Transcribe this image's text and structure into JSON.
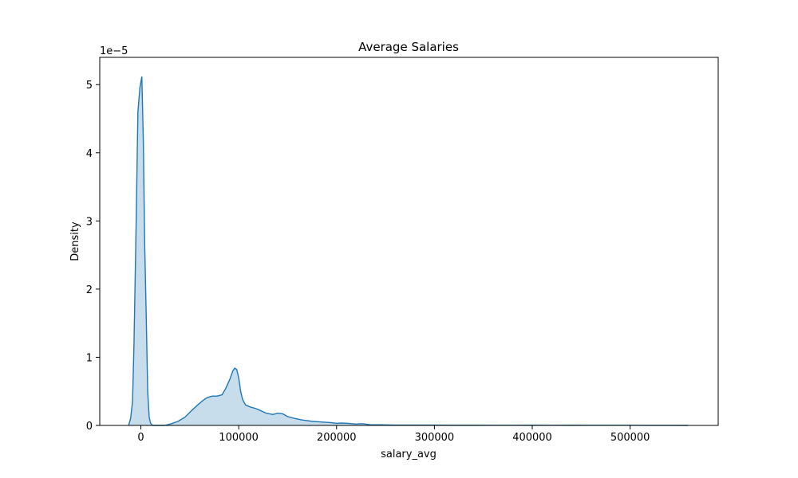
{
  "chart_data": {
    "type": "area",
    "title": "Average Salaries",
    "xlabel": "salary_avg",
    "ylabel": "Density",
    "y_offset_label": "1e−5",
    "xlim": [
      -42000,
      590000
    ],
    "ylim": [
      0,
      5.4
    ],
    "grid": false,
    "legend": "none",
    "xticks": [
      {
        "value": 0,
        "label": "0"
      },
      {
        "value": 100000,
        "label": "100000"
      },
      {
        "value": 200000,
        "label": "200000"
      },
      {
        "value": 300000,
        "label": "300000"
      },
      {
        "value": 400000,
        "label": "400000"
      },
      {
        "value": 500000,
        "label": "500000"
      }
    ],
    "yticks": [
      {
        "value": 0,
        "label": "0"
      },
      {
        "value": 1,
        "label": "1"
      },
      {
        "value": 2,
        "label": "2"
      },
      {
        "value": 3,
        "label": "3"
      },
      {
        "value": 4,
        "label": "4"
      },
      {
        "value": 5,
        "label": "5"
      }
    ],
    "series": [
      {
        "color": "#1f77b4",
        "fill_color": "#1f77b4",
        "fill_opacity": 0.25,
        "x": [
          -12500,
          -10500,
          -8500,
          -7000,
          -5000,
          -3000,
          -1000,
          1000,
          2500,
          4000,
          5500,
          7000,
          8500,
          10000,
          12000,
          14000,
          16000,
          19000,
          24000,
          30000,
          38000,
          45000,
          52000,
          58000,
          63000,
          68000,
          73000,
          78000,
          83000,
          87000,
          91000,
          94000,
          96000,
          98000,
          100000,
          102000,
          104000,
          107000,
          112000,
          117000,
          122000,
          128000,
          135000,
          140000,
          145000,
          150000,
          158000,
          165000,
          175000,
          185000,
          195000,
          200000,
          205000,
          212000,
          220000,
          226000,
          235000,
          245000,
          260000,
          280000,
          300000,
          320000,
          340000,
          360000,
          380000,
          400000,
          420000,
          440000,
          460000,
          480000,
          500000,
          520000,
          540000,
          559000
        ],
        "y": [
          0.0,
          0.1,
          0.35,
          1.2,
          2.8,
          4.6,
          4.95,
          5.12,
          4.2,
          2.6,
          1.6,
          0.5,
          0.12,
          0.03,
          0.0,
          0.0,
          0.0,
          0.0,
          0.0,
          0.02,
          0.06,
          0.12,
          0.22,
          0.3,
          0.36,
          0.41,
          0.43,
          0.43,
          0.45,
          0.55,
          0.68,
          0.8,
          0.84,
          0.82,
          0.7,
          0.5,
          0.38,
          0.3,
          0.27,
          0.25,
          0.22,
          0.18,
          0.16,
          0.18,
          0.17,
          0.13,
          0.1,
          0.08,
          0.06,
          0.05,
          0.04,
          0.03,
          0.035,
          0.03,
          0.02,
          0.025,
          0.01,
          0.01,
          0.005,
          0.005,
          0.005,
          0.003,
          0.003,
          0.002,
          0.002,
          0.003,
          0.002,
          0.003,
          0.002,
          0.002,
          0.002,
          0.001,
          0.001,
          0.0
        ]
      }
    ]
  }
}
